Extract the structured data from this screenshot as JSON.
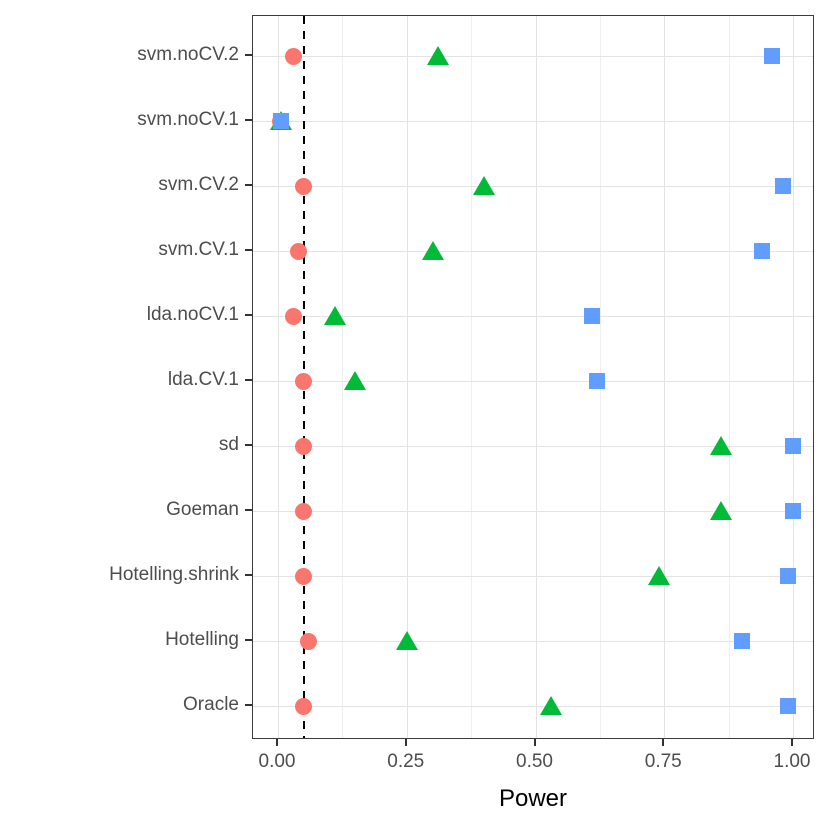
{
  "chart_data": {
    "type": "scatter",
    "title": "",
    "xlabel": "Power",
    "ylabel": "",
    "legend_position": "none",
    "grid": {
      "major": true,
      "minor": true
    },
    "x_axis": {
      "tick_values": [
        0,
        0.25,
        0.5,
        0.75,
        1.0
      ],
      "tick_labels": [
        "0.00",
        "0.25",
        "0.50",
        "0.75",
        "1.00"
      ],
      "minor_tick_values": [
        0.125,
        0.375,
        0.625,
        0.875
      ],
      "range_shown": [
        -0.049,
        1.043
      ]
    },
    "categories": [
      "svm.noCV.2",
      "svm.noCV.1",
      "svm.CV.2",
      "svm.CV.1",
      "lda.noCV.1",
      "lda.CV.1",
      "sd",
      "Goeman",
      "Hotelling.shrink",
      "Hotelling",
      "Oracle"
    ],
    "series": [
      {
        "name": "red-circle-series",
        "marker": "circle",
        "color": "#F8766D",
        "values": [
          0.03,
          0.005,
          0.05,
          0.04,
          0.03,
          0.05,
          0.05,
          0.05,
          0.05,
          0.06,
          0.05
        ]
      },
      {
        "name": "green-triangle-series",
        "marker": "triangle",
        "color": "#00BA38",
        "values": [
          0.31,
          0.005,
          0.4,
          0.3,
          0.11,
          0.15,
          0.86,
          0.86,
          0.74,
          0.25,
          0.53
        ]
      },
      {
        "name": "blue-square-series",
        "marker": "square",
        "color": "#619CFF",
        "values": [
          0.96,
          0.005,
          0.98,
          0.94,
          0.61,
          0.62,
          1.0,
          1.0,
          0.99,
          0.9,
          0.99
        ]
      }
    ],
    "reference_line": {
      "x": 0.05,
      "style": "dashed",
      "color": "#000000"
    }
  },
  "style": {
    "panel_border_color": "#3c3c3c",
    "major_grid_color": "#e3e3e3",
    "minor_grid_color": "#efefef",
    "axis_text_color": "#4d4d4d",
    "axis_title_color": "#000000"
  }
}
